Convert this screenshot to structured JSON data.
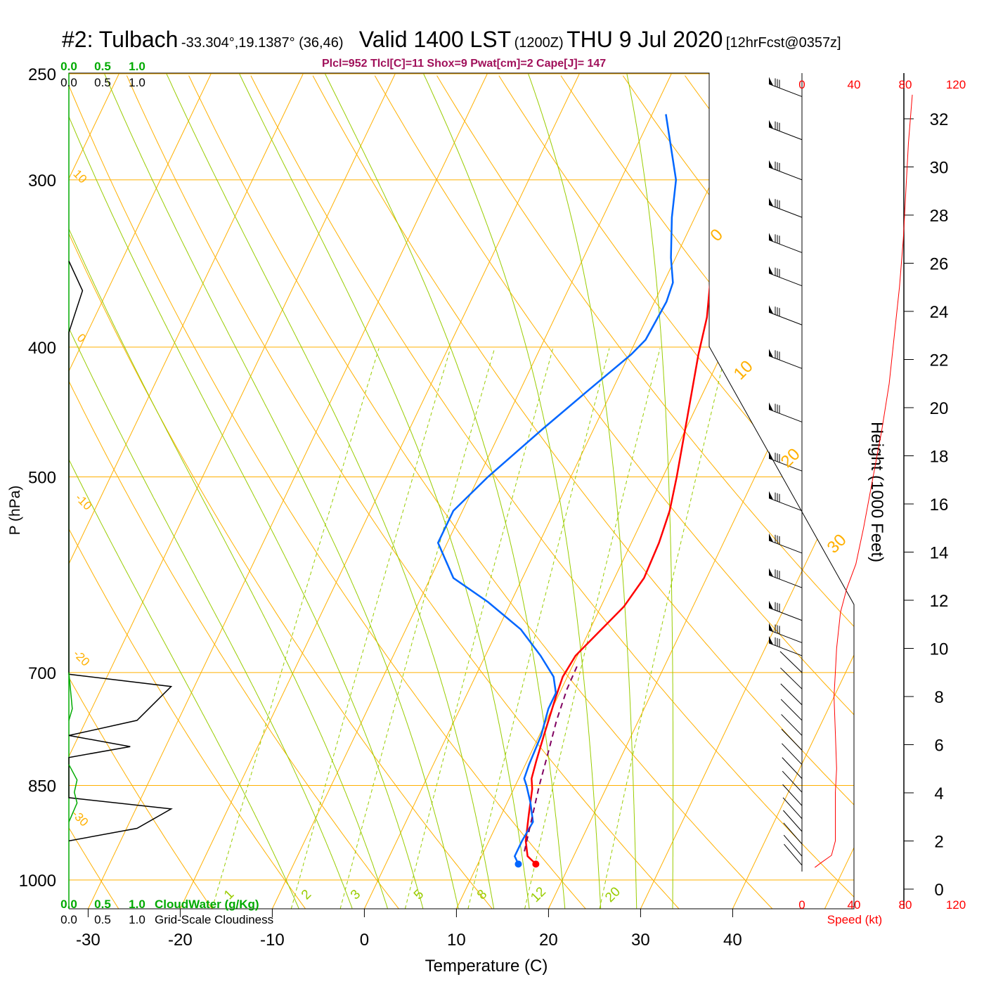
{
  "title": {
    "station": "#2: Tulbach",
    "coords": "-33.304°,19.1387° (36,46)",
    "valid": "Valid 1400 LST",
    "zulu": "(1200Z)",
    "date": "THU 9 Jul 2020",
    "fcst": "[12hrFcst@0357z]"
  },
  "params": "Plcl=952 Tlcl[C]=11 Shox=9 Pwat[cm]=2 Cape[J]= 147",
  "colors": {
    "temperature": "#ff0000",
    "dewpoint": "#0066ff",
    "parcel": "#800060",
    "isotherm": "#ffb000",
    "dry_adiabat": "#ffb000",
    "moist_adiabat": "#99cc00",
    "mixing_ratio": "#99cc00",
    "cloudwater": "#00aa00",
    "params": "#a0105a",
    "speed_axis": "#ff0000"
  },
  "chart_data": {
    "type": "line",
    "chart_kind": "skew-T log-P sounding",
    "xlabel": "Temperature (C)",
    "ylabel": "P (hPa)",
    "xticks": [
      -30,
      -20,
      -10,
      0,
      10,
      20,
      30,
      40
    ],
    "yticks": [
      250,
      300,
      400,
      500,
      700,
      850,
      1000
    ],
    "isotherm_labels": [
      "10",
      "0",
      "-10",
      "-20",
      "-30",
      "0",
      "10",
      "20",
      "30"
    ],
    "mixing_ratio_labels": [
      "1",
      "2",
      "3",
      "5",
      "8",
      "12",
      "20"
    ],
    "series": [
      {
        "key": "temperature",
        "points": [
          [
            16.3,
            973
          ],
          [
            15.0,
            960
          ],
          [
            14.0,
            935
          ],
          [
            13.0,
            895
          ],
          [
            12.0,
            855
          ],
          [
            11.4,
            840
          ],
          [
            11.0,
            815
          ],
          [
            10.5,
            780
          ],
          [
            9.8,
            730
          ],
          [
            9.5,
            705
          ],
          [
            9.8,
            680
          ],
          [
            11.0,
            655
          ],
          [
            12.5,
            625
          ],
          [
            13.2,
            595
          ],
          [
            13.0,
            560
          ],
          [
            12.5,
            530
          ],
          [
            11.5,
            500
          ],
          [
            9.5,
            450
          ],
          [
            7.5,
            405
          ],
          [
            6.5,
            380
          ],
          [
            4.5,
            350
          ],
          [
            2.8,
            325
          ],
          [
            1.0,
            305
          ],
          [
            -3.0,
            268
          ]
        ],
        "marker": [
          16.3,
          973
        ]
      },
      {
        "key": "dewpoint",
        "points": [
          [
            14.4,
            973
          ],
          [
            13.6,
            960
          ],
          [
            13.6,
            935
          ],
          [
            13.8,
            905
          ],
          [
            12.5,
            875
          ],
          [
            11.2,
            850
          ],
          [
            10.6,
            840
          ],
          [
            10.4,
            820
          ],
          [
            10.2,
            780
          ],
          [
            9.6,
            745
          ],
          [
            9.6,
            725
          ],
          [
            8.5,
            705
          ],
          [
            6.0,
            680
          ],
          [
            2.5,
            650
          ],
          [
            -2.5,
            620
          ],
          [
            -7.5,
            595
          ],
          [
            -11.0,
            560
          ],
          [
            -11.0,
            530
          ],
          [
            -9.0,
            500
          ],
          [
            -5.5,
            460
          ],
          [
            -2.5,
            430
          ],
          [
            0.2,
            405
          ],
          [
            1.0,
            395
          ],
          [
            1.3,
            370
          ],
          [
            1.0,
            358
          ],
          [
            -0.5,
            343
          ],
          [
            -2.5,
            320
          ],
          [
            -4.0,
            300
          ],
          [
            -8.5,
            268
          ]
        ],
        "marker": [
          14.4,
          973
        ]
      },
      {
        "key": "parcel",
        "dashed": true,
        "points": [
          [
            14.4,
            952
          ],
          [
            13.6,
            905
          ],
          [
            12.6,
            850
          ],
          [
            11.8,
            800
          ],
          [
            11.1,
            760
          ],
          [
            10.6,
            720
          ],
          [
            10.5,
            692
          ]
        ]
      }
    ],
    "cloudwater_labels": [
      "0.0",
      "0.5",
      "1.0",
      "CloudWater (g/Kg)"
    ],
    "cloudiness_labels": [
      "0.0",
      "0.5",
      "1.0",
      "Grid-Scale Cloudiness"
    ],
    "cloudiness_profile": [
      [
        0,
        345
      ],
      [
        0.2,
        363
      ],
      [
        0,
        390
      ],
      [
        0,
        702
      ],
      [
        1.5,
        717
      ],
      [
        1.0,
        760
      ],
      [
        0,
        780
      ],
      [
        0.9,
        795
      ],
      [
        0,
        810
      ],
      [
        0,
        868
      ],
      [
        1.5,
        885
      ],
      [
        1.0,
        915
      ],
      [
        0,
        935
      ]
    ],
    "wind_speed_axis": {
      "label": "Speed (kt)",
      "ticks": [
        0,
        40,
        80,
        120
      ]
    },
    "height_axis": {
      "label": "Height (1000 Feet)",
      "ticks": [
        0,
        2,
        4,
        6,
        8,
        10,
        12,
        14,
        16,
        18,
        20,
        22,
        24,
        26,
        28,
        30,
        32
      ]
    },
    "wind_speed_profile": [
      [
        10,
        0.9
      ],
      [
        15,
        1.1
      ],
      [
        23,
        1.4
      ],
      [
        26,
        2.0
      ],
      [
        26,
        4.0
      ],
      [
        27,
        5.0
      ],
      [
        26,
        6.5
      ],
      [
        25,
        8.0
      ],
      [
        26,
        9.0
      ],
      [
        27,
        10.0
      ],
      [
        30,
        11.5
      ],
      [
        35,
        12.5
      ],
      [
        42,
        13.5
      ],
      [
        48,
        15.0
      ],
      [
        55,
        17.0
      ],
      [
        62,
        19.0
      ],
      [
        68,
        21.0
      ],
      [
        72,
        23.0
      ],
      [
        76,
        25.0
      ],
      [
        79,
        27.0
      ],
      [
        81,
        29.0
      ],
      [
        83,
        31.0
      ],
      [
        86,
        33.0
      ]
    ],
    "wind_barbs_pressure": [
      260,
      280,
      300,
      320,
      340,
      360,
      385,
      415,
      455,
      495,
      530,
      570,
      605,
      640,
      665,
      680,
      700,
      720,
      740,
      760,
      780,
      800,
      820,
      840,
      860,
      880,
      900,
      920,
      940,
      960,
      975
    ]
  }
}
